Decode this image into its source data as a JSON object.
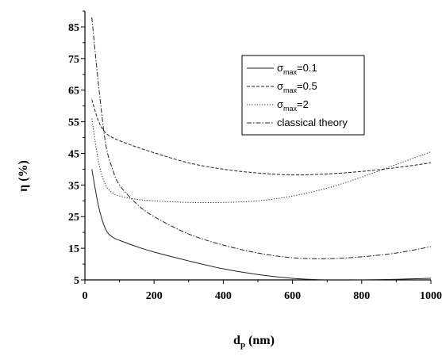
{
  "chart_data": {
    "type": "line",
    "title": "",
    "xlabel": {
      "main": "d",
      "sub": "p",
      "suffix": " (nm)"
    },
    "ylabel": "η (%)",
    "xlim": [
      0,
      1000
    ],
    "ylim": [
      5,
      90
    ],
    "x_ticks": [
      0,
      200,
      400,
      600,
      800,
      1000
    ],
    "x_tick_labels": [
      "0",
      "200",
      "400",
      "600",
      "800",
      "1000"
    ],
    "y_ticks": [
      5,
      15,
      25,
      35,
      45,
      55,
      65,
      75,
      85
    ],
    "y_tick_labels": [
      "5",
      "15",
      "25",
      "35",
      "45",
      "55",
      "65",
      "75",
      "85"
    ],
    "grid": false,
    "legend_position": "top-right",
    "series": [
      {
        "name": "σmax=0.1",
        "legend": {
          "main": "σ",
          "sub": "max",
          "suffix": "=0.1"
        },
        "dash": "solid",
        "x": [
          20,
          40,
          60,
          80,
          100,
          150,
          200,
          300,
          400,
          500,
          600,
          700,
          800,
          900,
          1000
        ],
        "y": [
          40,
          28,
          21,
          18.5,
          17.5,
          15.5,
          13.8,
          11,
          8.5,
          6.7,
          5.5,
          5,
          5,
          5.2,
          5.5
        ]
      },
      {
        "name": "σmax=0.5",
        "legend": {
          "main": "σ",
          "sub": "max",
          "suffix": "=0.5"
        },
        "dash": "dashed",
        "x": [
          20,
          40,
          60,
          80,
          100,
          150,
          200,
          300,
          400,
          500,
          600,
          700,
          800,
          900,
          1000
        ],
        "y": [
          62,
          55,
          51.5,
          50,
          49,
          47,
          45.2,
          42,
          40,
          38.8,
          38.2,
          38.5,
          39.3,
          40.5,
          42
        ]
      },
      {
        "name": "σmax=2",
        "legend": {
          "main": "σ",
          "sub": "max",
          "suffix": "=2"
        },
        "dash": "dotted",
        "x": [
          20,
          40,
          60,
          80,
          100,
          150,
          200,
          300,
          400,
          500,
          600,
          700,
          800,
          900,
          1000
        ],
        "y": [
          56,
          42,
          35,
          32.5,
          31.5,
          30.5,
          30,
          29.5,
          29.5,
          30,
          31.5,
          34,
          37.5,
          41.5,
          45.5
        ]
      },
      {
        "name": "classical theory",
        "legend": {
          "main": "classical theory",
          "sub": "",
          "suffix": ""
        },
        "dash": "dashdot",
        "x": [
          20,
          40,
          60,
          80,
          100,
          150,
          200,
          300,
          400,
          500,
          600,
          700,
          800,
          900,
          1000
        ],
        "y": [
          88,
          66,
          48,
          40,
          35,
          29,
          25,
          19.5,
          16,
          13.5,
          12,
          11.7,
          12.3,
          13.5,
          15.5
        ]
      }
    ]
  }
}
